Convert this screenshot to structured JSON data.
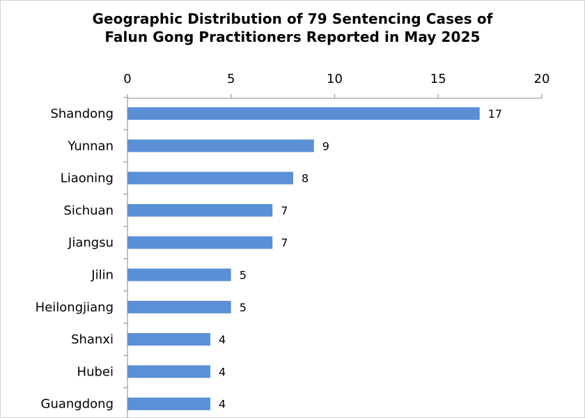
{
  "title_lines": [
    "Geographic Distribution of 79 Sentencing Cases of",
    "Falun Gong Practitioners Reported in May 2025"
  ],
  "colors": {
    "bar": "#5b8fd6",
    "axis": "#888888",
    "text": "#000000"
  },
  "chart_data": {
    "type": "bar",
    "orientation": "horizontal",
    "title": "Geographic Distribution of 79 Sentencing Cases of Falun Gong Practitioners Reported in May 2025",
    "xlabel": "",
    "ylabel": "",
    "xlim": [
      0,
      20
    ],
    "x_ticks": [
      0,
      5,
      10,
      15,
      20
    ],
    "x_axis_position": "top",
    "grid": false,
    "legend": "none",
    "categories": [
      "Shandong",
      "Yunnan",
      "Liaoning",
      "Sichuan",
      "Jiangsu",
      "Jilin",
      "Heilongjiang",
      "Shanxi",
      "Hubei",
      "Guangdong"
    ],
    "values": [
      17,
      9,
      8,
      7,
      7,
      5,
      5,
      4,
      4,
      4
    ]
  }
}
